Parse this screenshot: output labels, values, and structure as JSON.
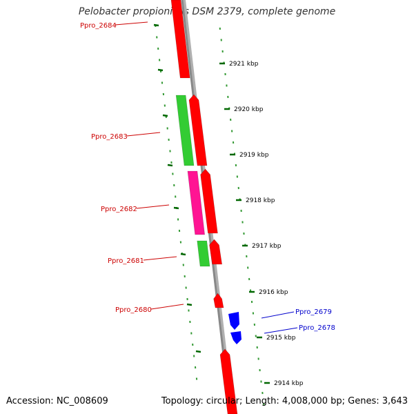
{
  "title": "Pelobacter propionicus DSM 2379, complete genome",
  "footer": {
    "accession": "Accession: NC_008609",
    "summary": "Topology: circular; Length: 4,008,000 bp; Genes: 3,643"
  },
  "colors": {
    "forward_gene": "#ff0000",
    "reverse_gene": "#0000ff",
    "green_feature": "#33cc33",
    "magenta_feature": "#ff1493",
    "backbone": "#888888",
    "tick": "#006600",
    "label_left": "#cc0000",
    "label_right": "#0000cc"
  },
  "scale_ticks": [
    {
      "kbp": 2921,
      "label": "2921 kbp"
    },
    {
      "kbp": 2920,
      "label": "2920 kbp"
    },
    {
      "kbp": 2919,
      "label": "2919 kbp"
    },
    {
      "kbp": 2918,
      "label": "2918 kbp"
    },
    {
      "kbp": 2917,
      "label": "2917 kbp"
    },
    {
      "kbp": 2916,
      "label": "2916 kbp"
    },
    {
      "kbp": 2915,
      "label": "2915 kbp"
    },
    {
      "kbp": 2914,
      "label": "2914 kbp"
    }
  ],
  "gene_labels": [
    {
      "name": "Ppro_2684",
      "side": "left"
    },
    {
      "name": "Ppro_2683",
      "side": "left"
    },
    {
      "name": "Ppro_2682",
      "side": "left"
    },
    {
      "name": "Ppro_2681",
      "side": "left"
    },
    {
      "name": "Ppro_2680",
      "side": "left"
    },
    {
      "name": "Ppro_2679",
      "side": "right"
    },
    {
      "name": "Ppro_2678",
      "side": "right"
    }
  ]
}
